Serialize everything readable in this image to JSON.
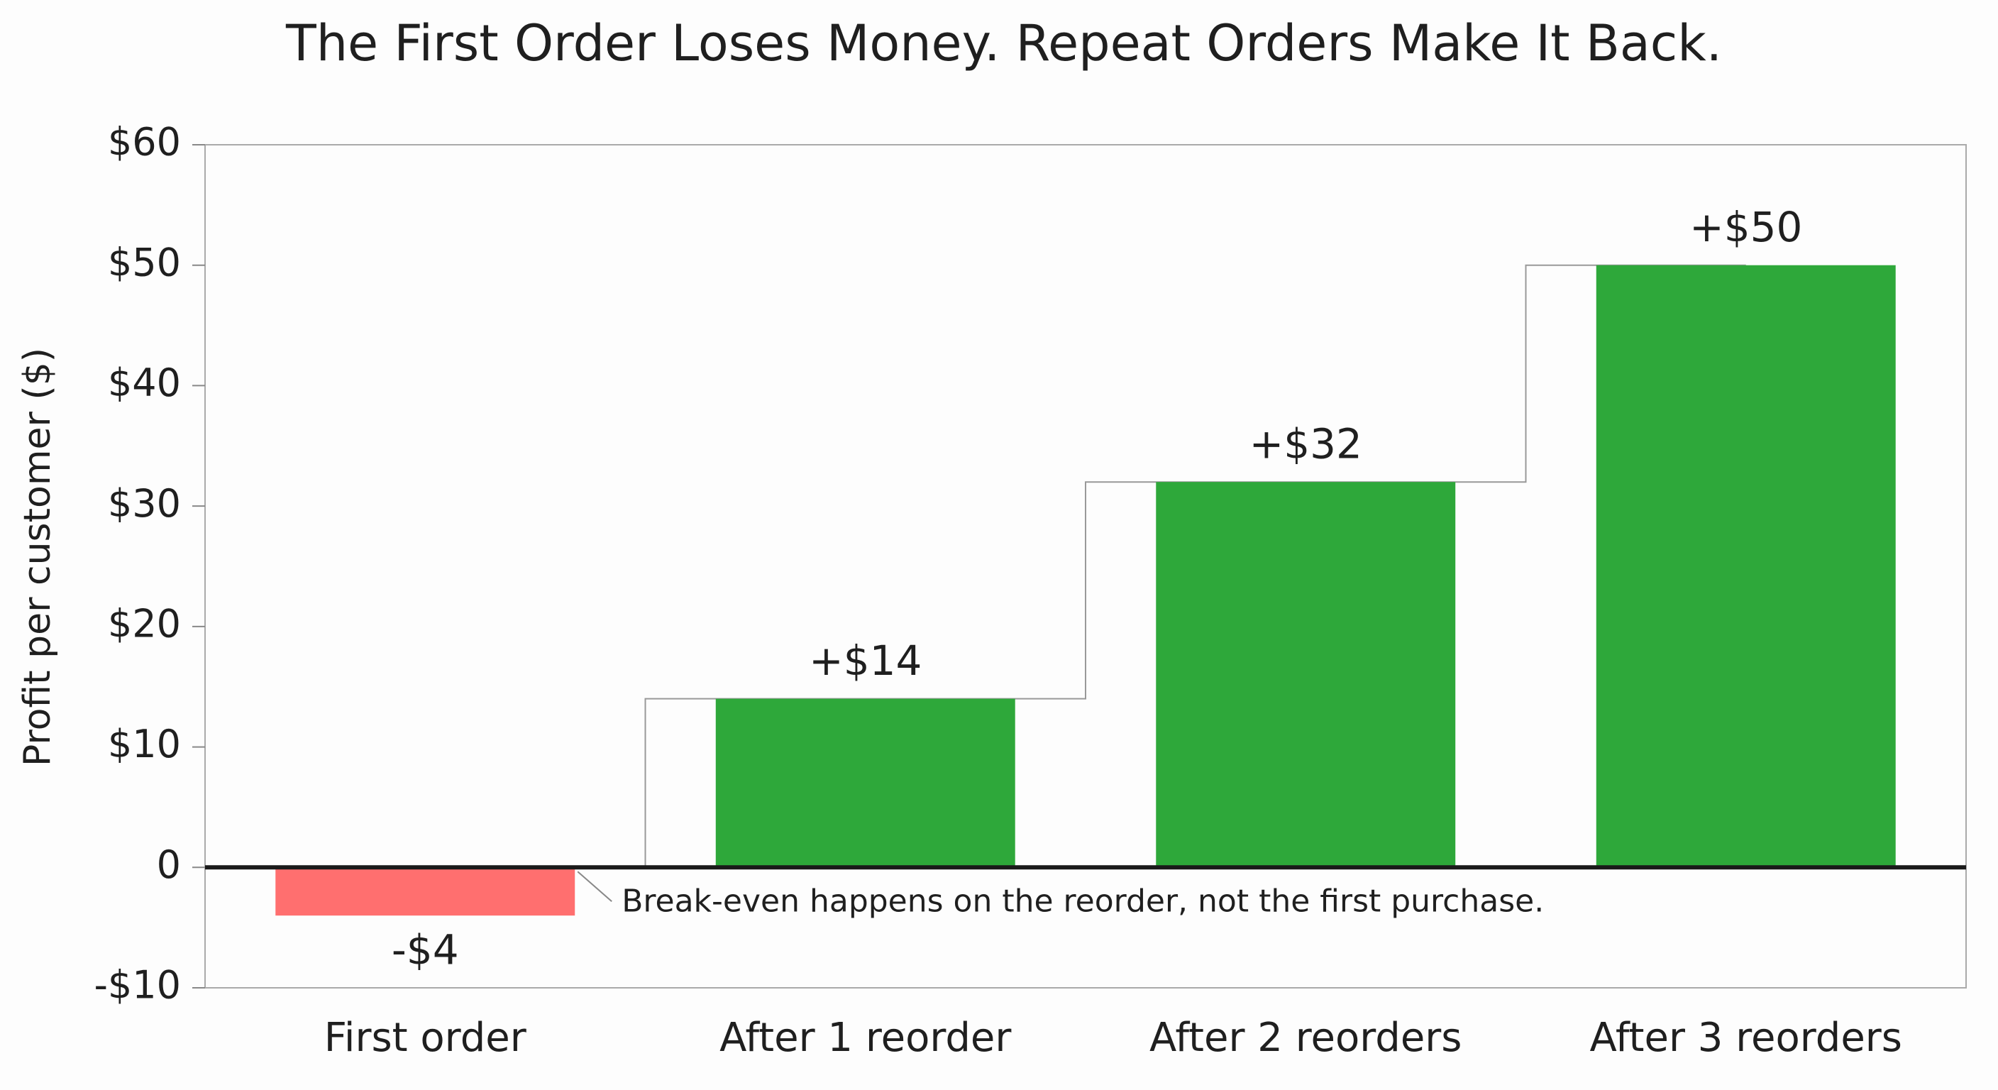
{
  "chart_data": {
    "type": "bar",
    "title": "The First Order Loses Money. Repeat Orders Make It Back.",
    "y_label": "Profit per customer ($)",
    "categories": [
      "First order",
      "After 1 reorder",
      "After 2 reorders",
      "After 3 reorders"
    ],
    "values": [
      -4,
      14,
      32,
      50
    ],
    "value_labels": [
      "-$4",
      "+$14",
      "+$32",
      "+$50"
    ],
    "colors": [
      "#ff6f6f",
      "#2ea83a",
      "#2ea83a",
      "#2ea83a"
    ],
    "ylim": [
      -10,
      60
    ],
    "yticks": [
      {
        "value": -10,
        "label": "-$10"
      },
      0,
      {
        "value": 10,
        "label": "$10"
      },
      {
        "value": 20,
        "label": "$20"
      },
      {
        "value": 30,
        "label": "$30"
      },
      {
        "value": 40,
        "label": "$40"
      },
      {
        "value": 50,
        "label": "$50"
      },
      {
        "value": 60,
        "label": "$60"
      }
    ],
    "annotation": "Break-even happens on the reorder, not the first purchase.",
    "grid": false
  }
}
